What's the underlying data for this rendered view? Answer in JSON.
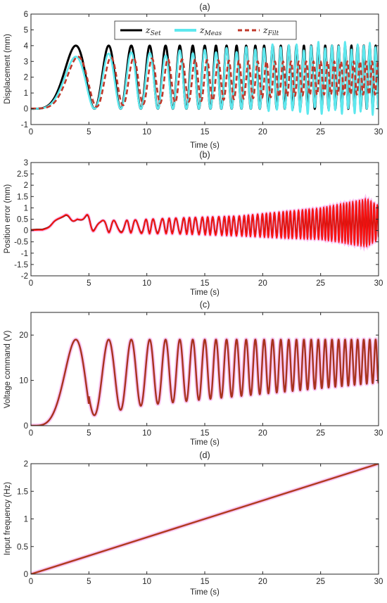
{
  "figure": {
    "background": "#ffffff",
    "axis_color": "#262626",
    "colors": {
      "set": "#000000",
      "meas": "#5ee8ee",
      "filt": "#c0392b",
      "error_line": "#ff1010",
      "error_dark": "#8b2010",
      "voltage": "#a8321e",
      "frequency": "#b03a1e",
      "pink_shadow": "#f7b7f0"
    }
  },
  "chart_data": [
    {
      "id": "a",
      "type": "line",
      "title": "(a)",
      "xlabel": "Time (s)",
      "ylabel": "Displacement (mm)",
      "xlim": [
        0,
        30
      ],
      "ylim": [
        -1,
        6
      ],
      "xticks": [
        0,
        5,
        10,
        15,
        20,
        25,
        30
      ],
      "yticks": [
        -1,
        0,
        1,
        2,
        3,
        4,
        5,
        6
      ],
      "grid": false,
      "legend_position": "top",
      "legend": [
        {
          "base": "z",
          "sub": "Set",
          "style": "solid-black"
        },
        {
          "base": "z",
          "sub": "Meas",
          "style": "solid-cyan"
        },
        {
          "base": "z",
          "sub": "Filt",
          "style": "dashed-red"
        }
      ],
      "series": [
        {
          "name": "z_Set",
          "description_of_signal": "2 + 2*sin(2*pi*(t*f(t)) - pi/2), chirp",
          "amplitude_mm": 2,
          "offset_mm": 2,
          "min": 0,
          "max": 4
        },
        {
          "name": "z_Meas",
          "min": 0,
          "max": 4.2,
          "start_max": 3.3
        },
        {
          "name": "z_Filt",
          "min": 0.3,
          "max": 3.3,
          "late_min": 0.9,
          "late_max": 3.0
        }
      ],
      "frequency_sweep_hz": [
        0,
        2
      ],
      "duration_s": 30
    },
    {
      "id": "b",
      "type": "line",
      "title": "(b)",
      "xlabel": "Time (s)",
      "ylabel": "Position error (mm)",
      "xlim": [
        0,
        30
      ],
      "ylim": [
        -2,
        3
      ],
      "xticks": [
        0,
        5,
        10,
        15,
        20,
        25,
        30
      ],
      "yticks": [
        -2,
        -1.5,
        -1,
        -0.5,
        0,
        0.5,
        1,
        1.5,
        2,
        2.5,
        3
      ],
      "grid": false,
      "x": [
        0,
        1,
        2,
        3,
        4,
        5,
        6,
        8,
        10,
        12,
        15,
        18,
        20,
        22,
        25,
        27,
        28,
        29,
        30
      ],
      "envelope_max": [
        0.05,
        0.1,
        0.45,
        0.7,
        0.75,
        0.7,
        0.45,
        0.45,
        0.5,
        0.55,
        0.6,
        0.65,
        0.75,
        0.85,
        1.0,
        1.2,
        1.3,
        1.4,
        1.1
      ],
      "envelope_min": [
        0.0,
        0.02,
        0.2,
        0.35,
        0.45,
        0.0,
        -0.1,
        -0.1,
        -0.15,
        -0.15,
        -0.2,
        -0.25,
        -0.3,
        -0.35,
        -0.4,
        -0.55,
        -0.65,
        -0.7,
        -0.4
      ]
    },
    {
      "id": "c",
      "type": "line",
      "title": "(c)",
      "xlabel": "Time (s)",
      "ylabel": "Voltage command (V)",
      "xlim": [
        0,
        30
      ],
      "ylim": [
        0,
        25
      ],
      "xticks": [
        0,
        5,
        10,
        15,
        20,
        25,
        30
      ],
      "yticks": [
        0,
        10,
        20
      ],
      "grid": false,
      "max_value": 19,
      "min_trough": [
        {
          "t": 5.5,
          "v": 2.3
        },
        {
          "t": 7.8,
          "v": 3.5
        },
        {
          "t": 9.7,
          "v": 4.5
        },
        {
          "t": 20,
          "v": 7
        },
        {
          "t": 30,
          "v": 9.5
        }
      ]
    },
    {
      "id": "d",
      "type": "line",
      "title": "(d)",
      "xlabel": "Time (s)",
      "ylabel": "Input frequency (Hz)",
      "xlim": [
        0,
        30
      ],
      "ylim": [
        0,
        2
      ],
      "xticks": [
        0,
        5,
        10,
        15,
        20,
        25,
        30
      ],
      "yticks": [
        0,
        0.5,
        1,
        1.5,
        2
      ],
      "grid": false,
      "x": [
        0,
        30
      ],
      "y": [
        0,
        2
      ]
    }
  ]
}
